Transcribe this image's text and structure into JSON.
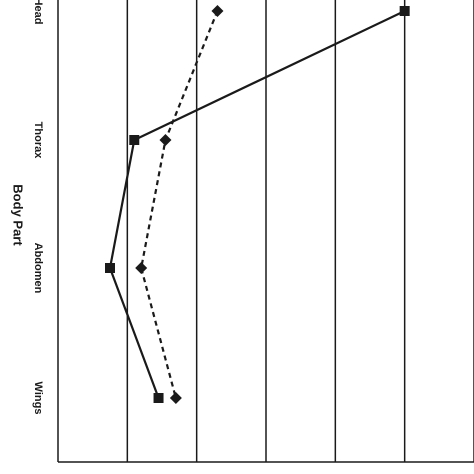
{
  "chart_data": {
    "type": "line",
    "orientation": "categories on vertical axis, values on horizontal axis",
    "ylabel": "Body Part",
    "categories": [
      "Head",
      "Thorax",
      "Abdomen",
      "Wings"
    ],
    "xlim": [
      0,
      6
    ],
    "grid": "vertical lines",
    "series": [
      {
        "marker": "square",
        "line": "solid",
        "color": "#1a1a1a",
        "values": [
          5.0,
          1.1,
          0.75,
          1.45
        ]
      },
      {
        "marker": "diamond",
        "line": "dashed",
        "color": "#1a1a1a",
        "values": [
          2.3,
          1.55,
          1.2,
          1.7
        ]
      }
    ]
  }
}
